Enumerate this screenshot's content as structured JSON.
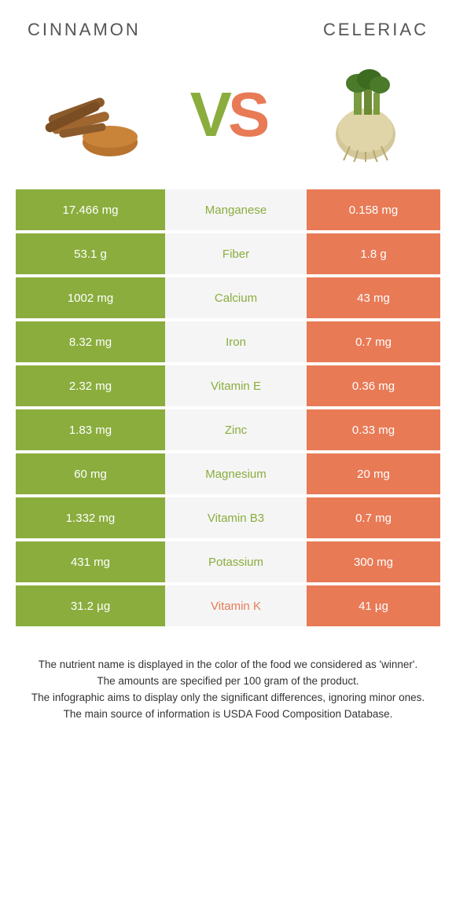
{
  "header": {
    "left": "CINNAMON",
    "right": "CELERIAC"
  },
  "vs": {
    "v": "V",
    "s": "S"
  },
  "colors": {
    "left": "#8aad3d",
    "right": "#e87a56",
    "mid_bg": "#f5f5f5",
    "text_white": "#ffffff"
  },
  "rows": [
    {
      "left": "17.466 mg",
      "label": "Manganese",
      "right": "0.158 mg",
      "winner": "left"
    },
    {
      "left": "53.1 g",
      "label": "Fiber",
      "right": "1.8 g",
      "winner": "left"
    },
    {
      "left": "1002 mg",
      "label": "Calcium",
      "right": "43 mg",
      "winner": "left"
    },
    {
      "left": "8.32 mg",
      "label": "Iron",
      "right": "0.7 mg",
      "winner": "left"
    },
    {
      "left": "2.32 mg",
      "label": "Vitamin E",
      "right": "0.36 mg",
      "winner": "left"
    },
    {
      "left": "1.83 mg",
      "label": "Zinc",
      "right": "0.33 mg",
      "winner": "left"
    },
    {
      "left": "60 mg",
      "label": "Magnesium",
      "right": "20 mg",
      "winner": "left"
    },
    {
      "left": "1.332 mg",
      "label": "Vitamin B3",
      "right": "0.7 mg",
      "winner": "left"
    },
    {
      "left": "431 mg",
      "label": "Potassium",
      "right": "300 mg",
      "winner": "left"
    },
    {
      "left": "31.2 µg",
      "label": "Vitamin K",
      "right": "41 µg",
      "winner": "right"
    }
  ],
  "footer": {
    "line1": "The nutrient name is displayed in the color of the food we considered as 'winner'.",
    "line2": "The amounts are specified per 100 gram of the product.",
    "line3": "The infographic aims to display only the significant differences, ignoring minor ones.",
    "line4": "The main source of information is USDA Food Composition Database."
  }
}
